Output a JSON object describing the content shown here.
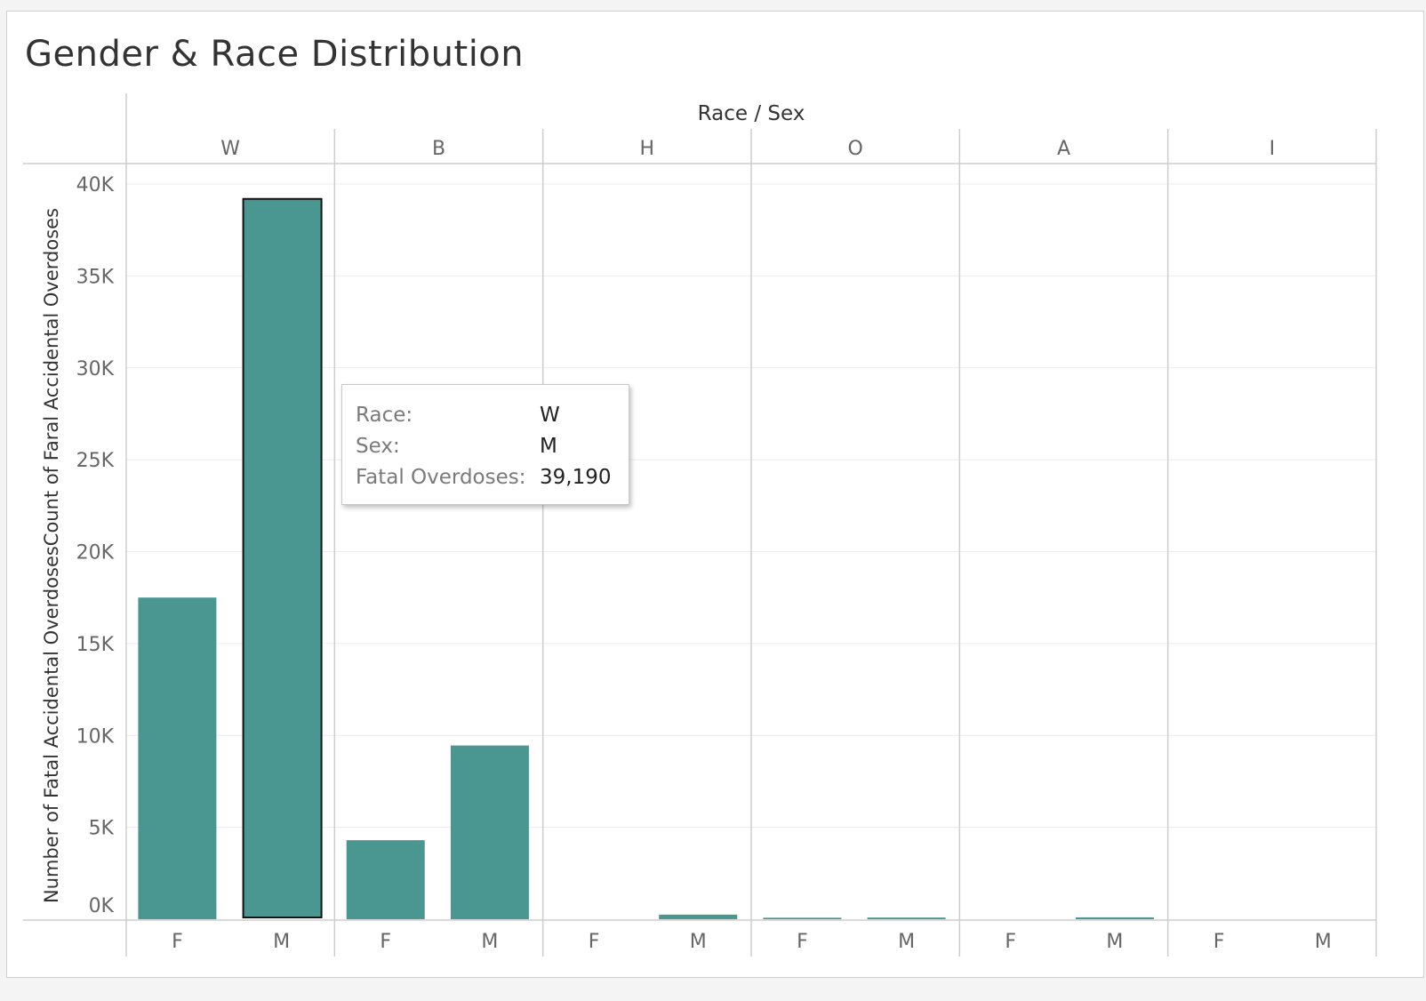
{
  "title": "Gender & Race Distribution",
  "colors": {
    "bar": "#4a9792",
    "selected_outline": "#111111",
    "grid": "#ececec",
    "pane_divider": "#cdcdcd",
    "axis_text": "#666666",
    "header_text": "#333333"
  },
  "tooltip": {
    "race_label": "Race:",
    "race_value": "W",
    "sex_label": "Sex:",
    "sex_value": "M",
    "count_label": "Fatal Overdoses:",
    "count_value": "39,190"
  },
  "chart_data": {
    "type": "bar",
    "title": "Gender & Race Distribution",
    "column_header_title": "Race / Sex",
    "ylabel": "Number of Fatal Accidental OverdosesCount of Faral Accidental Overdoses",
    "ylim": [
      0,
      41000
    ],
    "yticks": [
      0,
      5000,
      10000,
      15000,
      20000,
      25000,
      30000,
      35000,
      40000
    ],
    "ytick_labels": [
      "0K",
      "5K",
      "10K",
      "15K",
      "20K",
      "25K",
      "30K",
      "35K",
      "40K"
    ],
    "grid": true,
    "groups": [
      {
        "race": "W",
        "bars": [
          {
            "sex": "F",
            "value": 17500
          },
          {
            "sex": "M",
            "value": 39190,
            "selected": true
          }
        ]
      },
      {
        "race": "B",
        "bars": [
          {
            "sex": "F",
            "value": 4300
          },
          {
            "sex": "M",
            "value": 9450
          }
        ]
      },
      {
        "race": "H",
        "bars": [
          {
            "sex": "F",
            "value": 0
          },
          {
            "sex": "M",
            "value": 250
          }
        ]
      },
      {
        "race": "O",
        "bars": [
          {
            "sex": "F",
            "value": 80
          },
          {
            "sex": "M",
            "value": 90
          }
        ]
      },
      {
        "race": "A",
        "bars": [
          {
            "sex": "F",
            "value": 0
          },
          {
            "sex": "M",
            "value": 100
          }
        ]
      },
      {
        "race": "I",
        "bars": [
          {
            "sex": "F",
            "value": 0
          },
          {
            "sex": "M",
            "value": 0
          }
        ]
      }
    ]
  }
}
